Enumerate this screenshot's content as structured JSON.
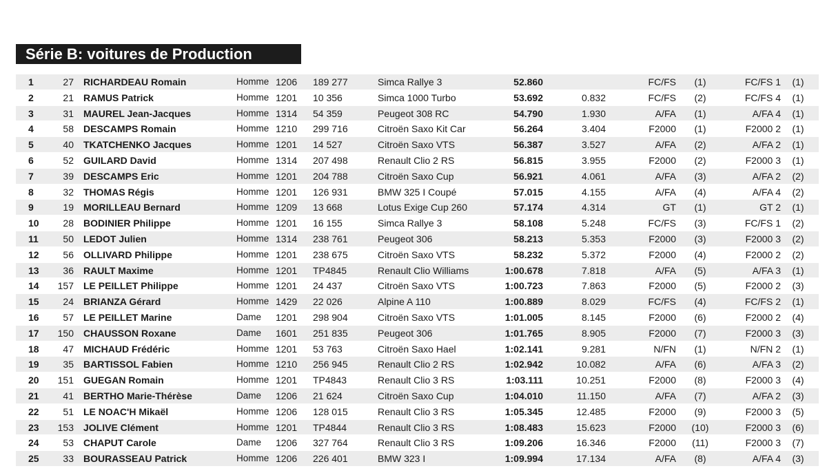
{
  "title": "Série B: voitures de Production",
  "rows": [
    {
      "pos": "1",
      "num": "27",
      "name": "RICHARDEAU Romain",
      "sex": "Homme",
      "cyl": "1206",
      "lic": "189 277",
      "car": "Simca Rallye 3",
      "time": "52.860",
      "gap": "",
      "cls": "FC/FS",
      "clsr": "(1)",
      "grp": "FC/FS 1",
      "grpr": "(1)"
    },
    {
      "pos": "2",
      "num": "21",
      "name": "RAMUS Patrick",
      "sex": "Homme",
      "cyl": "1201",
      "lic": "10 356",
      "car": "Simca 1000 Turbo",
      "time": "53.692",
      "gap": "0.832",
      "cls": "FC/FS",
      "clsr": "(2)",
      "grp": "FC/FS 4",
      "grpr": "(1)"
    },
    {
      "pos": "3",
      "num": "31",
      "name": "MAUREL Jean-Jacques",
      "sex": "Homme",
      "cyl": "1314",
      "lic": "54 359",
      "car": "Peugeot 308 RC",
      "time": "54.790",
      "gap": "1.930",
      "cls": "A/FA",
      "clsr": "(1)",
      "grp": "A/FA 4",
      "grpr": "(1)"
    },
    {
      "pos": "4",
      "num": "58",
      "name": "DESCAMPS Romain",
      "sex": "Homme",
      "cyl": "1210",
      "lic": "299 716",
      "car": "Citroën Saxo Kit Car",
      "time": "56.264",
      "gap": "3.404",
      "cls": "F2000",
      "clsr": "(1)",
      "grp": "F2000 2",
      "grpr": "(1)"
    },
    {
      "pos": "5",
      "num": "40",
      "name": "TKATCHENKO Jacques",
      "sex": "Homme",
      "cyl": "1201",
      "lic": "14 527",
      "car": "Citroën Saxo VTS",
      "time": "56.387",
      "gap": "3.527",
      "cls": "A/FA",
      "clsr": "(2)",
      "grp": "A/FA 2",
      "grpr": "(1)"
    },
    {
      "pos": "6",
      "num": "52",
      "name": "GUILARD David",
      "sex": "Homme",
      "cyl": "1314",
      "lic": "207 498",
      "car": "Renault Clio 2 RS",
      "time": "56.815",
      "gap": "3.955",
      "cls": "F2000",
      "clsr": "(2)",
      "grp": "F2000 3",
      "grpr": "(1)"
    },
    {
      "pos": "7",
      "num": "39",
      "name": "DESCAMPS Eric",
      "sex": "Homme",
      "cyl": "1201",
      "lic": "204 788",
      "car": "Citroën Saxo Cup",
      "time": "56.921",
      "gap": "4.061",
      "cls": "A/FA",
      "clsr": "(3)",
      "grp": "A/FA 2",
      "grpr": "(2)"
    },
    {
      "pos": "8",
      "num": "32",
      "name": "THOMAS Régis",
      "sex": "Homme",
      "cyl": "1201",
      "lic": "126 931",
      "car": "BMW 325 I Coupé",
      "time": "57.015",
      "gap": "4.155",
      "cls": "A/FA",
      "clsr": "(4)",
      "grp": "A/FA 4",
      "grpr": "(2)"
    },
    {
      "pos": "9",
      "num": "19",
      "name": "MORILLEAU Bernard",
      "sex": "Homme",
      "cyl": "1209",
      "lic": "13 668",
      "car": "Lotus Exige Cup 260",
      "time": "57.174",
      "gap": "4.314",
      "cls": "GT",
      "clsr": "(1)",
      "grp": "GT 2",
      "grpr": "(1)"
    },
    {
      "pos": "10",
      "num": "28",
      "name": "BODINIER Philippe",
      "sex": "Homme",
      "cyl": "1201",
      "lic": "16 155",
      "car": "Simca Rallye 3",
      "time": "58.108",
      "gap": "5.248",
      "cls": "FC/FS",
      "clsr": "(3)",
      "grp": "FC/FS 1",
      "grpr": "(2)"
    },
    {
      "pos": "11",
      "num": "50",
      "name": "LEDOT Julien",
      "sex": "Homme",
      "cyl": "1314",
      "lic": "238 761",
      "car": "Peugeot 306",
      "time": "58.213",
      "gap": "5.353",
      "cls": "F2000",
      "clsr": "(3)",
      "grp": "F2000 3",
      "grpr": "(2)"
    },
    {
      "pos": "12",
      "num": "56",
      "name": "OLLIVARD Philippe",
      "sex": "Homme",
      "cyl": "1201",
      "lic": "238 675",
      "car": "Citroën Saxo VTS",
      "time": "58.232",
      "gap": "5.372",
      "cls": "F2000",
      "clsr": "(4)",
      "grp": "F2000 2",
      "grpr": "(2)"
    },
    {
      "pos": "13",
      "num": "36",
      "name": "RAULT Maxime",
      "sex": "Homme",
      "cyl": "1201",
      "lic": "TP4845",
      "car": "Renault Clio Williams",
      "time": "1:00.678",
      "gap": "7.818",
      "cls": "A/FA",
      "clsr": "(5)",
      "grp": "A/FA 3",
      "grpr": "(1)"
    },
    {
      "pos": "14",
      "num": "157",
      "name": "LE PEILLET Philippe",
      "sex": "Homme",
      "cyl": "1201",
      "lic": "24 437",
      "car": "Citroën Saxo VTS",
      "time": "1:00.723",
      "gap": "7.863",
      "cls": "F2000",
      "clsr": "(5)",
      "grp": "F2000 2",
      "grpr": "(3)"
    },
    {
      "pos": "15",
      "num": "24",
      "name": "BRIANZA Gérard",
      "sex": "Homme",
      "cyl": "1429",
      "lic": "22 026",
      "car": "Alpine A 110",
      "time": "1:00.889",
      "gap": "8.029",
      "cls": "FC/FS",
      "clsr": "(4)",
      "grp": "FC/FS 2",
      "grpr": "(1)"
    },
    {
      "pos": "16",
      "num": "57",
      "name": "LE PEILLET Marine",
      "sex": "Dame",
      "cyl": "1201",
      "lic": "298 904",
      "car": "Citroën Saxo VTS",
      "time": "1:01.005",
      "gap": "8.145",
      "cls": "F2000",
      "clsr": "(6)",
      "grp": "F2000 2",
      "grpr": "(4)"
    },
    {
      "pos": "17",
      "num": "150",
      "name": "CHAUSSON Roxane",
      "sex": "Dame",
      "cyl": "1601",
      "lic": "251 835",
      "car": "Peugeot 306",
      "time": "1:01.765",
      "gap": "8.905",
      "cls": "F2000",
      "clsr": "(7)",
      "grp": "F2000 3",
      "grpr": "(3)"
    },
    {
      "pos": "18",
      "num": "47",
      "name": "MICHAUD Frédéric",
      "sex": "Homme",
      "cyl": "1201",
      "lic": "53 763",
      "car": "Citroën Saxo Hael",
      "time": "1:02.141",
      "gap": "9.281",
      "cls": "N/FN",
      "clsr": "(1)",
      "grp": "N/FN 2",
      "grpr": "(1)"
    },
    {
      "pos": "19",
      "num": "35",
      "name": "BARTISSOL Fabien",
      "sex": "Homme",
      "cyl": "1210",
      "lic": "256 945",
      "car": "Renault Clio 2 RS",
      "time": "1:02.942",
      "gap": "10.082",
      "cls": "A/FA",
      "clsr": "(6)",
      "grp": "A/FA 3",
      "grpr": "(2)"
    },
    {
      "pos": "20",
      "num": "151",
      "name": "GUEGAN Romain",
      "sex": "Homme",
      "cyl": "1201",
      "lic": "TP4843",
      "car": "Renault Clio 3 RS",
      "time": "1:03.111",
      "gap": "10.251",
      "cls": "F2000",
      "clsr": "(8)",
      "grp": "F2000 3",
      "grpr": "(4)"
    },
    {
      "pos": "21",
      "num": "41",
      "name": "BERTHO Marie-Thérèse",
      "sex": "Dame",
      "cyl": "1206",
      "lic": "21 624",
      "car": "Citroën Saxo Cup",
      "time": "1:04.010",
      "gap": "11.150",
      "cls": "A/FA",
      "clsr": "(7)",
      "grp": "A/FA 2",
      "grpr": "(3)"
    },
    {
      "pos": "22",
      "num": "51",
      "name": "LE NOAC'H Mikaël",
      "sex": "Homme",
      "cyl": "1206",
      "lic": "128 015",
      "car": "Renault Clio 3 RS",
      "time": "1:05.345",
      "gap": "12.485",
      "cls": "F2000",
      "clsr": "(9)",
      "grp": "F2000 3",
      "grpr": "(5)"
    },
    {
      "pos": "23",
      "num": "153",
      "name": "JOLIVE Clément",
      "sex": "Homme",
      "cyl": "1201",
      "lic": "TP4844",
      "car": "Renault Clio 3 RS",
      "time": "1:08.483",
      "gap": "15.623",
      "cls": "F2000",
      "clsr": "(10)",
      "grp": "F2000 3",
      "grpr": "(6)"
    },
    {
      "pos": "24",
      "num": "53",
      "name": "CHAPUT Carole",
      "sex": "Dame",
      "cyl": "1206",
      "lic": "327 764",
      "car": "Renault Clio 3 RS",
      "time": "1:09.206",
      "gap": "16.346",
      "cls": "F2000",
      "clsr": "(11)",
      "grp": "F2000 3",
      "grpr": "(7)"
    },
    {
      "pos": "25",
      "num": "33",
      "name": "BOURASSEAU Patrick",
      "sex": "Homme",
      "cyl": "1206",
      "lic": "226 401",
      "car": "BMW 323 I",
      "time": "1:09.994",
      "gap": "17.134",
      "cls": "A/FA",
      "clsr": "(8)",
      "grp": "A/FA 4",
      "grpr": "(3)"
    }
  ]
}
